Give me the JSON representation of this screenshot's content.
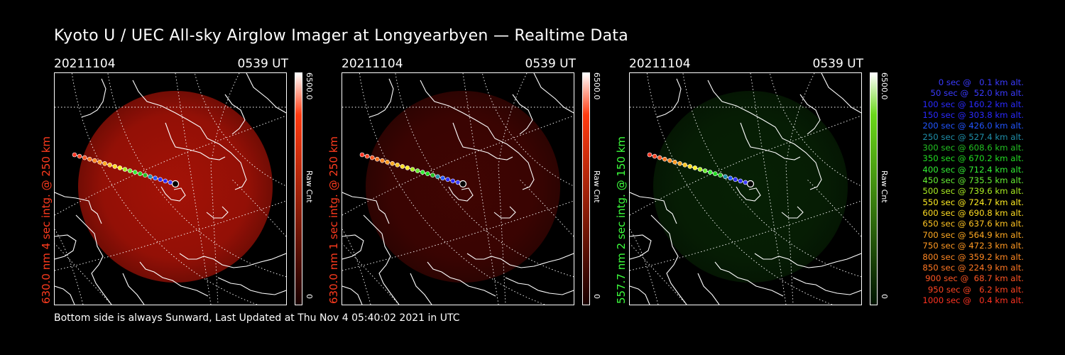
{
  "title": "Kyoto U / UEC All-sky Airglow Imager at Longyearbyen — Realtime Data",
  "panels": [
    {
      "date": "20211104",
      "time": "0539 UT",
      "label": "630.0 nm 4 sec intg. @ 250 km",
      "label_color": "#ff3b1e",
      "cbar_max": "6500.0",
      "cbar_unit": "Raw Cnt",
      "cbar_min": "0",
      "glow_color": "#c01508",
      "glow_opacity": 0.85,
      "cbar_top_color": "#ff3a10",
      "cbar_bottom_color": "#1a0000"
    },
    {
      "date": "20211104",
      "time": "0539 UT",
      "label": "630.0 nm 1 sec intg. @ 250 km",
      "label_color": "#ff3b1e",
      "cbar_max": "6500.0",
      "cbar_unit": "Raw Cnt",
      "cbar_min": "0",
      "glow_color": "#6a0804",
      "glow_opacity": 0.6,
      "cbar_top_color": "#ff3a10",
      "cbar_bottom_color": "#1a0000"
    },
    {
      "date": "20211104",
      "time": "0539 UT",
      "label": "557.7 nm 2 sec intg. @ 150 km",
      "label_color": "#3cff3c",
      "cbar_max": "6500.0",
      "cbar_unit": "Raw Cnt",
      "cbar_min": "0",
      "glow_color": "#0c3a08",
      "glow_opacity": 0.55,
      "cbar_top_color": "#6ad81a",
      "cbar_bottom_color": "#001400"
    }
  ],
  "legend": [
    {
      "text": "0 sec @   0.1 km alt.",
      "color": "#3a3aff"
    },
    {
      "text": "50 sec @  52.0 km alt.",
      "color": "#3a3aff"
    },
    {
      "text": "100 sec @ 160.2 km alt.",
      "color": "#2a2aff"
    },
    {
      "text": "150 sec @ 303.8 km alt.",
      "color": "#2a2aff"
    },
    {
      "text": "200 sec @ 426.0 km alt.",
      "color": "#2255ff"
    },
    {
      "text": "250 sec @ 527.4 km alt.",
      "color": "#1f8faa"
    },
    {
      "text": "300 sec @ 608.6 km alt.",
      "color": "#22c022"
    },
    {
      "text": "350 sec @ 670.2 km alt.",
      "color": "#22dd22"
    },
    {
      "text": "400 sec @ 712.4 km alt.",
      "color": "#33ee33"
    },
    {
      "text": "450 sec @ 735.5 km alt.",
      "color": "#66ee33"
    },
    {
      "text": "500 sec @ 739.6 km alt.",
      "color": "#aaee22"
    },
    {
      "text": "550 sec @ 724.7 km alt.",
      "color": "#ffee22"
    },
    {
      "text": "600 sec @ 690.8 km alt.",
      "color": "#ffdd22"
    },
    {
      "text": "650 sec @ 637.6 km alt.",
      "color": "#ffc422"
    },
    {
      "text": "700 sec @ 564.9 km alt.",
      "color": "#ffaa22"
    },
    {
      "text": "750 sec @ 472.3 km alt.",
      "color": "#ff9922"
    },
    {
      "text": "800 sec @ 359.2 km alt.",
      "color": "#ff8822"
    },
    {
      "text": "850 sec @ 224.9 km alt.",
      "color": "#ff7722"
    },
    {
      "text": "900 sec @  68.7 km alt.",
      "color": "#ff5522"
    },
    {
      "text": "950 sec @   6.2 km alt.",
      "color": "#ff4422"
    },
    {
      "text": "1000 sec @   0.4 km alt.",
      "color": "#ff3322"
    }
  ],
  "footer": "Bottom side is always Sunward, Last Updated at Thu Nov  4 05:40:02 2021 in UTC"
}
